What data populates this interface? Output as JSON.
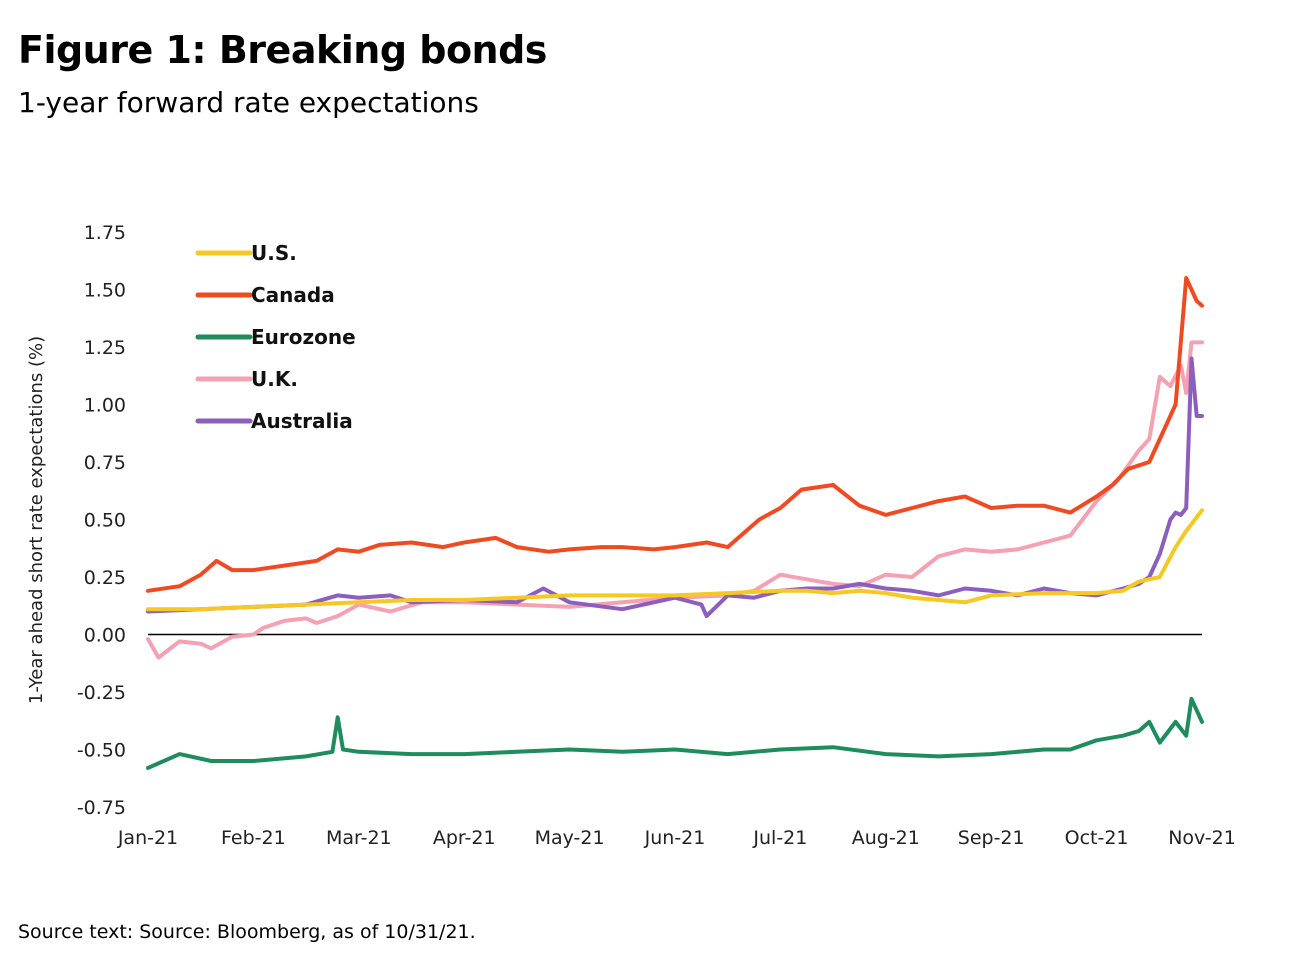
{
  "header": {
    "title": "Figure 1: Breaking bonds",
    "subtitle": "1-year forward rate expectations"
  },
  "footer": {
    "source": "Source text: Source: Bloomberg, as of 10/31/21."
  },
  "chart_data": {
    "type": "line",
    "title": "Figure 1: Breaking bonds",
    "subtitle": "1-year forward rate expectations",
    "xlabel": "",
    "ylabel": "1-Year ahead short rate expectations (%)",
    "ylim": [
      -0.75,
      1.75
    ],
    "yticks": [
      1.75,
      1.5,
      1.25,
      1.0,
      0.75,
      0.5,
      0.25,
      0.0,
      -0.25,
      -0.5,
      -0.75
    ],
    "ytick_labels": [
      "1.75",
      "1.50",
      "1.25",
      "1.00",
      "0.75",
      "0.50",
      "0.25",
      "0.00",
      "-0.25",
      "-0.50",
      "-0.75"
    ],
    "x_range": [
      0,
      10
    ],
    "xtick_labels": [
      "Jan-21",
      "Feb-21",
      "Mar-21",
      "Apr-21",
      "May-21",
      "Jun-21",
      "Jul-21",
      "Aug-21",
      "Sep-21",
      "Oct-21",
      "Nov-21"
    ],
    "zero_line": true,
    "legend_position": "top-left",
    "series": [
      {
        "name": "U.S.",
        "color": "#f5c823",
        "x": [
          0,
          0.5,
          1.0,
          1.5,
          2.0,
          2.5,
          3.0,
          3.5,
          4.0,
          4.5,
          5.0,
          5.5,
          6.0,
          6.25,
          6.5,
          6.75,
          7.0,
          7.25,
          7.5,
          7.75,
          8.0,
          8.5,
          8.75,
          9.0,
          9.25,
          9.4,
          9.6,
          9.75,
          9.85,
          10.0
        ],
        "values": [
          0.11,
          0.11,
          0.12,
          0.13,
          0.14,
          0.15,
          0.15,
          0.16,
          0.17,
          0.17,
          0.17,
          0.18,
          0.19,
          0.19,
          0.18,
          0.19,
          0.18,
          0.16,
          0.15,
          0.14,
          0.17,
          0.18,
          0.18,
          0.18,
          0.19,
          0.23,
          0.25,
          0.38,
          0.45,
          0.54
        ]
      },
      {
        "name": "Canada",
        "color": "#ee4b23",
        "x": [
          0,
          0.3,
          0.5,
          0.65,
          0.8,
          1.0,
          1.3,
          1.6,
          1.8,
          2.0,
          2.2,
          2.5,
          2.8,
          3.0,
          3.3,
          3.5,
          3.8,
          4.0,
          4.3,
          4.5,
          4.8,
          5.0,
          5.3,
          5.5,
          5.8,
          6.0,
          6.2,
          6.5,
          6.75,
          7.0,
          7.25,
          7.5,
          7.75,
          8.0,
          8.25,
          8.5,
          8.75,
          9.0,
          9.15,
          9.3,
          9.5,
          9.65,
          9.75,
          9.85,
          9.95,
          10.0
        ],
        "values": [
          0.19,
          0.21,
          0.26,
          0.32,
          0.28,
          0.28,
          0.3,
          0.32,
          0.37,
          0.36,
          0.39,
          0.4,
          0.38,
          0.4,
          0.42,
          0.38,
          0.36,
          0.37,
          0.38,
          0.38,
          0.37,
          0.38,
          0.4,
          0.38,
          0.5,
          0.55,
          0.63,
          0.65,
          0.56,
          0.52,
          0.55,
          0.58,
          0.6,
          0.55,
          0.56,
          0.56,
          0.53,
          0.6,
          0.65,
          0.72,
          0.75,
          0.9,
          1.0,
          1.55,
          1.45,
          1.43
        ]
      },
      {
        "name": "Eurozone",
        "color": "#1f8c5e",
        "x": [
          0,
          0.3,
          0.6,
          1.0,
          1.5,
          1.75,
          1.8,
          1.85,
          2.0,
          2.5,
          3.0,
          3.5,
          4.0,
          4.5,
          5.0,
          5.5,
          6.0,
          6.5,
          7.0,
          7.5,
          8.0,
          8.5,
          8.75,
          9.0,
          9.25,
          9.4,
          9.5,
          9.6,
          9.75,
          9.85,
          9.9,
          10.0
        ],
        "values": [
          -0.58,
          -0.52,
          -0.55,
          -0.55,
          -0.53,
          -0.51,
          -0.36,
          -0.5,
          -0.51,
          -0.52,
          -0.52,
          -0.51,
          -0.5,
          -0.51,
          -0.5,
          -0.52,
          -0.5,
          -0.49,
          -0.52,
          -0.53,
          -0.52,
          -0.5,
          -0.5,
          -0.46,
          -0.44,
          -0.42,
          -0.38,
          -0.47,
          -0.38,
          -0.44,
          -0.28,
          -0.38
        ]
      },
      {
        "name": "U.K.",
        "color": "#f5a1b4",
        "x": [
          0,
          0.1,
          0.3,
          0.5,
          0.6,
          0.8,
          1.0,
          1.1,
          1.3,
          1.5,
          1.6,
          1.8,
          2.0,
          2.3,
          2.6,
          3.0,
          3.5,
          4.0,
          4.5,
          5.0,
          5.5,
          5.75,
          6.0,
          6.25,
          6.5,
          6.75,
          7.0,
          7.25,
          7.5,
          7.75,
          8.0,
          8.25,
          8.5,
          8.75,
          9.0,
          9.2,
          9.4,
          9.5,
          9.6,
          9.7,
          9.8,
          9.85,
          9.9,
          10.0
        ],
        "values": [
          -0.02,
          -0.1,
          -0.03,
          -0.04,
          -0.06,
          -0.01,
          0.0,
          0.03,
          0.06,
          0.07,
          0.05,
          0.08,
          0.13,
          0.1,
          0.14,
          0.14,
          0.13,
          0.12,
          0.14,
          0.16,
          0.17,
          0.19,
          0.26,
          0.24,
          0.22,
          0.21,
          0.26,
          0.25,
          0.34,
          0.37,
          0.36,
          0.37,
          0.4,
          0.43,
          0.58,
          0.67,
          0.8,
          0.85,
          1.12,
          1.08,
          1.17,
          1.05,
          1.27,
          1.27
        ]
      },
      {
        "name": "Australia",
        "color": "#8c5fbd",
        "x": [
          0,
          0.5,
          1.0,
          1.5,
          1.8,
          2.0,
          2.3,
          2.5,
          3.0,
          3.5,
          3.75,
          4.0,
          4.5,
          5.0,
          5.25,
          5.3,
          5.5,
          5.75,
          6.0,
          6.25,
          6.5,
          6.75,
          7.0,
          7.25,
          7.5,
          7.75,
          8.0,
          8.25,
          8.5,
          8.75,
          9.0,
          9.25,
          9.4,
          9.5,
          9.6,
          9.7,
          9.75,
          9.8,
          9.85,
          9.9,
          9.95,
          10.0
        ],
        "values": [
          0.1,
          0.11,
          0.12,
          0.13,
          0.17,
          0.16,
          0.17,
          0.14,
          0.15,
          0.14,
          0.2,
          0.14,
          0.11,
          0.16,
          0.13,
          0.08,
          0.17,
          0.16,
          0.19,
          0.2,
          0.2,
          0.22,
          0.2,
          0.19,
          0.17,
          0.2,
          0.19,
          0.17,
          0.2,
          0.18,
          0.17,
          0.2,
          0.22,
          0.25,
          0.35,
          0.5,
          0.53,
          0.52,
          0.55,
          1.2,
          0.95,
          0.95
        ]
      }
    ]
  }
}
